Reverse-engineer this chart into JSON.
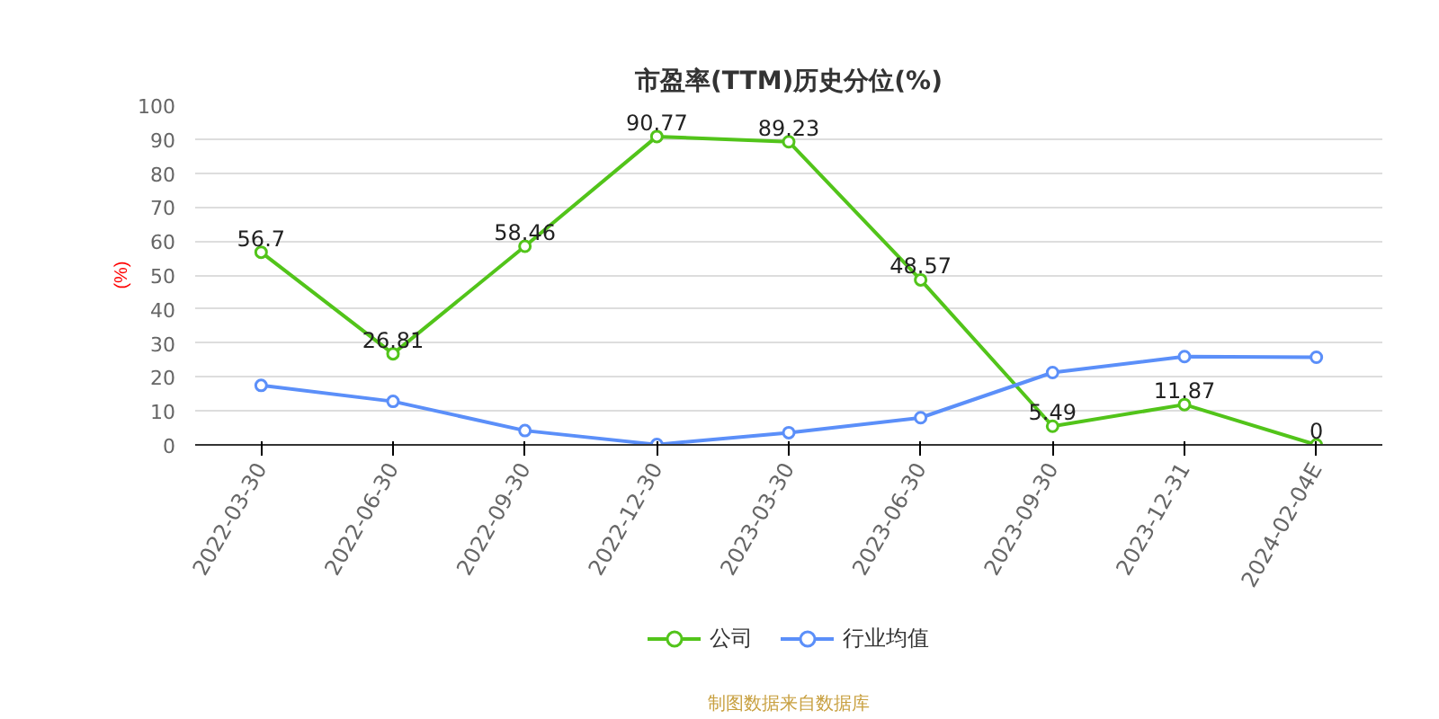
{
  "chart_data": {
    "type": "line",
    "title": "市盈率(TTM)历史分位(%)",
    "ylabel": "(%)",
    "categories": [
      "2022-03-30",
      "2022-06-30",
      "2022-09-30",
      "2022-12-30",
      "2023-03-30",
      "2023-06-30",
      "2023-09-30",
      "2023-12-31",
      "2024-02-04E"
    ],
    "series": [
      {
        "name": "公司",
        "color": "#52c41a",
        "values": [
          56.7,
          26.81,
          58.46,
          90.77,
          89.23,
          48.57,
          5.49,
          11.87,
          0
        ],
        "data_labels": true,
        "marker": "circle"
      },
      {
        "name": "行业均值",
        "color": "#5b8ff9",
        "values": [
          17.5,
          12.8,
          4.2,
          0.1,
          3.6,
          8.0,
          21.3,
          26.0,
          25.8
        ],
        "marker": "circle"
      }
    ],
    "ylim": [
      0,
      100
    ],
    "yticks": [
      0,
      10,
      20,
      30,
      40,
      50,
      60,
      70,
      80,
      90,
      100
    ],
    "grid": "y",
    "legend": "bottom",
    "line_style": "solid",
    "annotations": [
      "制图数据来自数据库"
    ]
  }
}
